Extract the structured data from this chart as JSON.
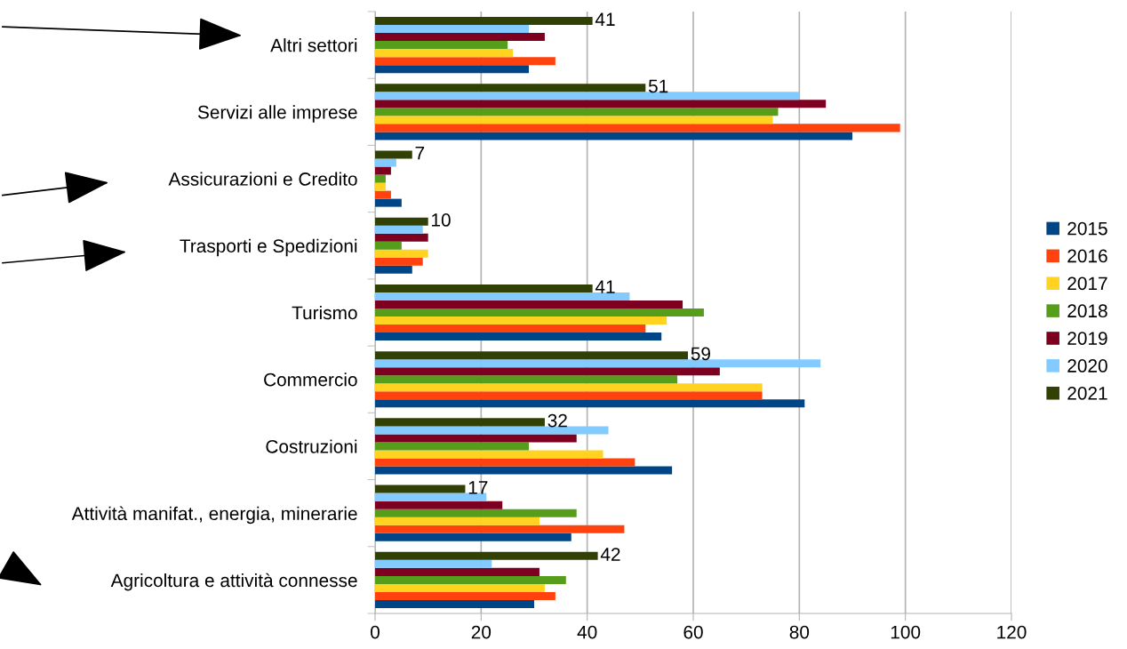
{
  "chart_data": {
    "type": "bar",
    "orientation": "horizontal",
    "categories": [
      "Altri settori",
      "Servizi alle imprese",
      "Assicurazioni e Credito",
      "Trasporti e Spedizioni",
      "Turismo",
      "Commercio",
      "Costruzioni",
      "Attività manifat., energia, minerarie",
      "Agricoltura e attività connesse"
    ],
    "series": [
      {
        "name": "2015",
        "color": "#004586",
        "values": [
          29,
          90,
          5,
          7,
          54,
          81,
          56,
          37,
          30
        ]
      },
      {
        "name": "2016",
        "color": "#ff420e",
        "values": [
          34,
          99,
          3,
          9,
          51,
          73,
          49,
          47,
          34
        ]
      },
      {
        "name": "2017",
        "color": "#ffd320",
        "values": [
          26,
          75,
          2,
          10,
          55,
          73,
          43,
          31,
          32
        ]
      },
      {
        "name": "2018",
        "color": "#579d1c",
        "values": [
          25,
          76,
          2,
          5,
          62,
          57,
          29,
          38,
          36
        ]
      },
      {
        "name": "2019",
        "color": "#7e0021",
        "values": [
          32,
          85,
          3,
          10,
          58,
          65,
          38,
          24,
          31
        ]
      },
      {
        "name": "2020",
        "color": "#83caff",
        "values": [
          29,
          80,
          4,
          9,
          48,
          84,
          44,
          21,
          22
        ]
      },
      {
        "name": "2021",
        "color": "#314004",
        "values": [
          41,
          51,
          7,
          10,
          41,
          59,
          32,
          17,
          42
        ],
        "value_labels": [
          "41",
          "51",
          "7",
          "10",
          "41",
          "59",
          "32",
          "17",
          "42"
        ]
      }
    ],
    "xlim": [
      0,
      120
    ],
    "xticks": [
      0,
      20,
      40,
      60,
      80,
      100,
      120
    ],
    "grid": "x",
    "legend": "right"
  }
}
